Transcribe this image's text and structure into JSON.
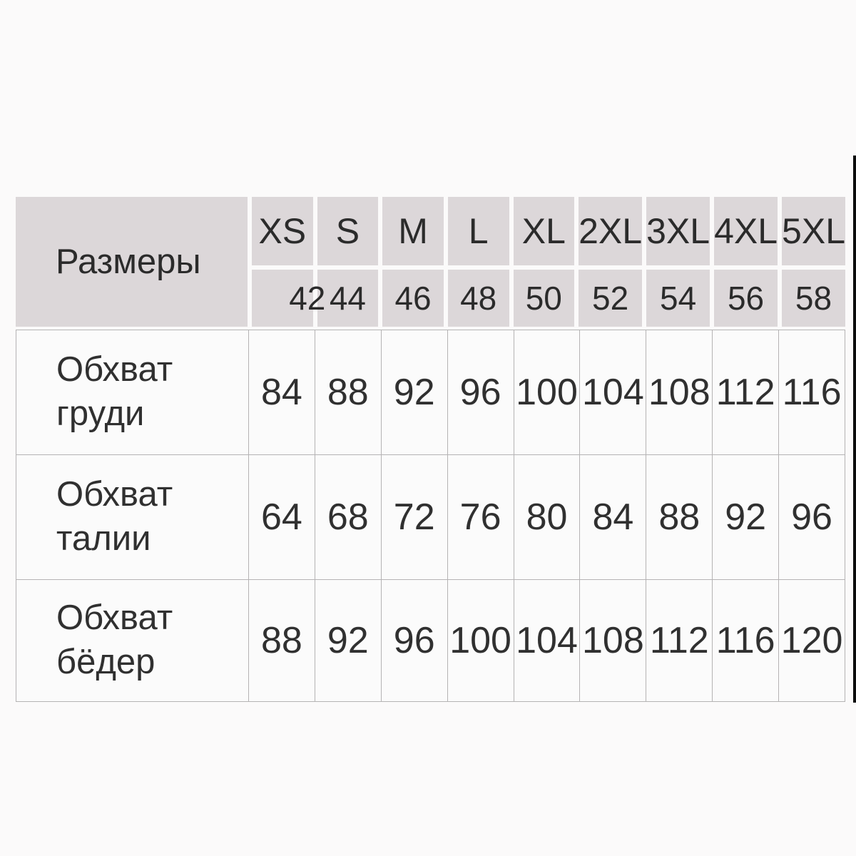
{
  "chart_data": {
    "type": "table",
    "corner_label": "Размеры",
    "columns": [
      "XS",
      "S",
      "M",
      "L",
      "XL",
      "2XL",
      "3XL",
      "4XL",
      "5XL"
    ],
    "russian_sizes": [
      "42",
      "44",
      "46",
      "48",
      "50",
      "52",
      "54",
      "56",
      "58"
    ],
    "rows": [
      {
        "label": "Обхват груди",
        "values": [
          84,
          88,
          92,
          96,
          100,
          104,
          108,
          112,
          116
        ]
      },
      {
        "label": "Обхват талии",
        "values": [
          64,
          68,
          72,
          76,
          80,
          84,
          88,
          92,
          96
        ]
      },
      {
        "label": "Обхват бёдер",
        "values": [
          88,
          92,
          96,
          100,
          104,
          108,
          112,
          116,
          120
        ]
      }
    ],
    "colors": {
      "header_bg": "#dcd7d9",
      "body_bg": "#fbfbfb",
      "grid_line": "#b5b3b4",
      "text": "#2d2d2d",
      "edge_strip": "#0c0c0c"
    },
    "layout": {
      "grid": "on",
      "header_rows": 2,
      "body_rows": 3,
      "data_columns": 9
    }
  }
}
